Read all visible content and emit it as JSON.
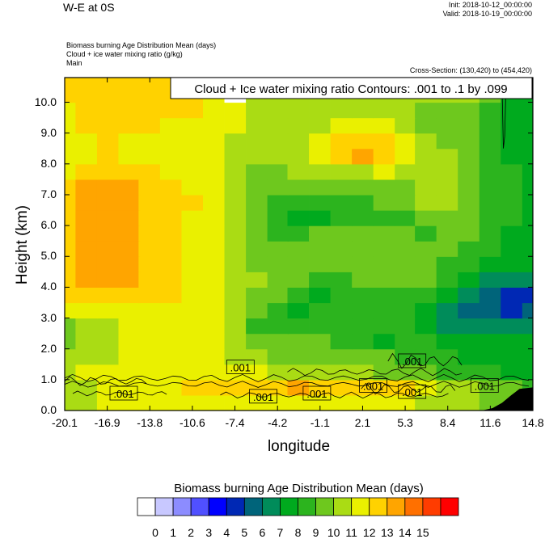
{
  "figure": {
    "title": "W-E at 0S",
    "init": "Init: 2018-10-12_00:00:00",
    "valid": "Valid: 2018-10-19_00:00:00",
    "fields": [
      "Biomass burning Age Distribution Mean   (days)",
      "Cloud + ice water mixing ratio   (g/kg)",
      "Main"
    ],
    "cross_section": "Cross-Section: (130,420) to (454,420)",
    "contour_info": "Cloud + Ice water mixing ratio Contours: .001 to .1 by .099"
  },
  "chart_data": {
    "type": "heatmap",
    "title": "W-E at 0S",
    "xlabel": "longitude",
    "ylabel": "Height (km)",
    "xlim": [
      -20.1,
      14.8
    ],
    "ylim": [
      0.0,
      10.8
    ],
    "x_ticks": [
      "-20.1",
      "-16.9",
      "-13.8",
      "-10.6",
      "-7.4",
      "-4.2",
      "-1.1",
      "2.1",
      "5.3",
      "8.4",
      "11.6",
      "14.8"
    ],
    "y_ticks": [
      "0.0",
      "1.0",
      "2.0",
      "3.0",
      "4.0",
      "5.0",
      "6.0",
      "7.0",
      "8.0",
      "9.0",
      "10.0"
    ],
    "colorbar": {
      "title": "Biomass burning Age Distribution Mean  (days)",
      "labels": [
        "0",
        "1",
        "2",
        "3",
        "4",
        "5",
        "6",
        "7",
        "8",
        "9",
        "10",
        "11",
        "12",
        "13",
        "14",
        "15"
      ],
      "colors": [
        "#ffffff",
        "#c8c8ff",
        "#8c8cff",
        "#5050ff",
        "#0000ff",
        "#0028b4",
        "#00647a",
        "#008c5a",
        "#00aa1e",
        "#2cb41e",
        "#6ec81e",
        "#aadc14",
        "#eaf000",
        "#ffd200",
        "#ffa500",
        "#ff7000",
        "#ff3c00",
        "#ff0000"
      ]
    },
    "grid_x": [
      -20.1,
      -18.5,
      -16.9,
      -15.3,
      -13.8,
      -12.2,
      -10.6,
      -9.0,
      -7.4,
      -5.8,
      -4.2,
      -2.7,
      -1.1,
      0.5,
      2.1,
      3.7,
      5.3,
      6.8,
      8.4,
      10.0,
      11.6,
      13.2,
      14.8
    ],
    "grid_y": [
      0.25,
      0.75,
      1.25,
      1.75,
      2.25,
      2.75,
      3.25,
      3.75,
      4.25,
      4.75,
      5.25,
      5.75,
      6.25,
      6.75,
      7.25,
      7.75,
      8.25,
      8.75,
      9.25,
      9.75,
      10.25,
      10.75
    ],
    "z": [
      [
        11,
        11,
        12,
        12,
        12,
        12,
        12,
        12,
        12,
        12,
        12,
        12,
        12,
        12,
        12,
        12,
        12,
        11,
        11,
        11,
        10,
        10,
        9
      ],
      [
        11,
        11,
        12,
        12,
        12,
        12,
        13,
        13,
        13,
        13,
        13,
        14,
        13,
        13,
        13,
        13,
        13,
        12,
        11,
        11,
        10,
        10,
        9
      ],
      [
        11,
        12,
        12,
        12,
        12,
        12,
        12,
        12,
        12,
        12,
        11,
        11,
        11,
        11,
        11,
        10,
        10,
        10,
        9,
        9,
        9,
        8,
        8
      ],
      [
        11,
        11,
        11,
        12,
        12,
        12,
        12,
        12,
        11,
        11,
        10,
        10,
        10,
        10,
        10,
        10,
        9,
        9,
        9,
        8,
        8,
        8,
        8
      ],
      [
        10,
        11,
        11,
        12,
        12,
        12,
        12,
        12,
        11,
        10,
        10,
        10,
        10,
        9,
        9,
        8,
        9,
        9,
        8,
        8,
        8,
        8,
        8
      ],
      [
        10,
        11,
        11,
        12,
        12,
        12,
        12,
        12,
        11,
        9,
        9,
        9,
        9,
        9,
        9,
        9,
        9,
        8,
        7,
        7,
        7,
        7,
        7
      ],
      [
        12,
        12,
        12,
        12,
        12,
        12,
        12,
        12,
        11,
        10,
        9,
        8,
        9,
        9,
        9,
        9,
        9,
        8,
        7,
        6,
        6,
        5,
        6
      ],
      [
        13,
        13,
        13,
        13,
        13,
        13,
        12,
        12,
        11,
        10,
        10,
        9,
        8,
        9,
        9,
        9,
        9,
        9,
        8,
        7,
        6,
        5,
        5
      ],
      [
        13,
        14,
        14,
        14,
        13,
        13,
        12,
        12,
        11,
        11,
        10,
        10,
        9,
        9,
        10,
        10,
        10,
        10,
        9,
        8,
        7,
        7,
        7
      ],
      [
        13,
        14,
        14,
        14,
        13,
        13,
        12,
        12,
        11,
        10,
        10,
        10,
        10,
        10,
        10,
        10,
        10,
        10,
        9,
        9,
        8,
        8,
        8
      ],
      [
        13,
        14,
        14,
        14,
        13,
        13,
        12,
        12,
        11,
        10,
        10,
        10,
        10,
        10,
        10,
        10,
        10,
        10,
        10,
        9,
        9,
        8,
        8
      ],
      [
        13,
        14,
        14,
        14,
        13,
        13,
        12,
        12,
        11,
        10,
        9,
        9,
        10,
        10,
        10,
        10,
        10,
        9,
        10,
        10,
        9,
        8,
        8
      ],
      [
        13,
        14,
        14,
        14,
        13,
        13,
        12,
        12,
        11,
        10,
        9,
        8,
        8,
        9,
        9,
        9,
        9,
        10,
        10,
        10,
        9,
        9,
        8
      ],
      [
        13,
        14,
        14,
        14,
        13,
        13,
        13,
        12,
        11,
        10,
        9,
        9,
        9,
        9,
        9,
        10,
        10,
        11,
        11,
        10,
        9,
        9,
        8
      ],
      [
        13,
        14,
        14,
        14,
        13,
        13,
        12,
        12,
        11,
        10,
        10,
        10,
        10,
        10,
        10,
        10,
        10,
        11,
        11,
        10,
        9,
        9,
        8
      ],
      [
        12,
        13,
        13,
        13,
        13,
        12,
        12,
        12,
        11,
        10,
        10,
        11,
        11,
        11,
        11,
        12,
        11,
        11,
        11,
        10,
        9,
        9,
        8
      ],
      [
        12,
        12,
        13,
        12,
        12,
        12,
        12,
        12,
        11,
        11,
        11,
        11,
        12,
        13,
        14,
        13,
        12,
        11,
        11,
        10,
        9,
        8,
        8
      ],
      [
        12,
        12,
        13,
        12,
        12,
        12,
        12,
        12,
        11,
        11,
        11,
        11,
        12,
        13,
        13,
        13,
        12,
        11,
        10,
        10,
        9,
        8,
        8
      ],
      [
        12,
        13,
        13,
        13,
        13,
        12,
        12,
        12,
        12,
        11,
        11,
        11,
        11,
        12,
        12,
        12,
        11,
        10,
        10,
        10,
        9,
        8,
        8
      ],
      [
        12,
        13,
        13,
        13,
        13,
        13,
        13,
        12,
        12,
        11,
        11,
        11,
        11,
        11,
        11,
        11,
        11,
        10,
        10,
        10,
        9,
        8,
        8
      ],
      [
        13,
        13,
        13,
        13,
        13,
        13,
        13,
        12,
        0,
        11,
        11,
        11,
        11,
        11,
        11,
        11,
        11,
        11,
        11,
        11,
        10,
        8,
        8
      ],
      [
        13,
        13,
        13,
        13,
        13,
        13,
        13,
        12,
        0,
        11,
        11,
        11,
        11,
        11,
        11,
        11,
        11,
        11,
        11,
        11,
        10,
        9,
        8
      ]
    ],
    "contour_labels": [
      {
        "x": -7.0,
        "y": 1.4,
        "text": ".001"
      },
      {
        "x": -15.7,
        "y": 0.55,
        "text": ".001"
      },
      {
        "x": -5.3,
        "y": 0.45,
        "text": ".001"
      },
      {
        "x": -1.3,
        "y": 0.55,
        "text": ".001"
      },
      {
        "x": 2.9,
        "y": 0.8,
        "text": ".001"
      },
      {
        "x": 5.8,
        "y": 1.6,
        "text": ".001"
      },
      {
        "x": 5.8,
        "y": 0.6,
        "text": ".001"
      },
      {
        "x": 11.2,
        "y": 0.8,
        "text": ".001"
      }
    ]
  }
}
